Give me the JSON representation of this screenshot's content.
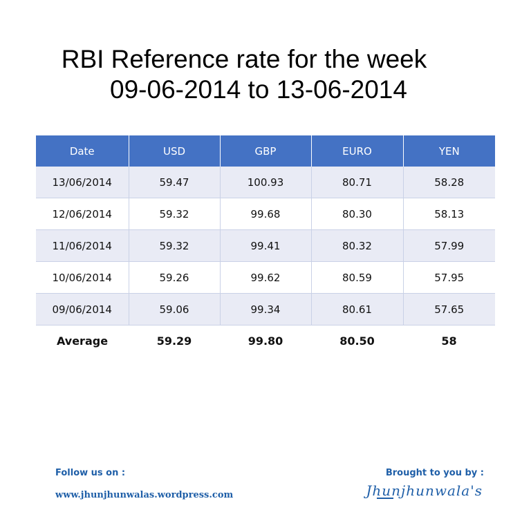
{
  "title": {
    "line1": "RBI Reference rate for the week",
    "line2": "09-06-2014 to 13-06-2014"
  },
  "table": {
    "headers": [
      "Date",
      "USD",
      "GBP",
      "EURO",
      "YEN"
    ],
    "rows": [
      [
        "13/06/2014",
        "59.47",
        "100.93",
        "80.71",
        "58.28"
      ],
      [
        "12/06/2014",
        "59.32",
        "99.68",
        "80.30",
        "58.13"
      ],
      [
        "11/06/2014",
        "59.32",
        "99.41",
        "80.32",
        "57.99"
      ],
      [
        "10/06/2014",
        "59.26",
        "99.62",
        "80.59",
        "57.95"
      ],
      [
        "09/06/2014",
        "59.06",
        "99.34",
        "80.61",
        "57.65"
      ]
    ],
    "average": [
      "Average",
      "59.29",
      "99.80",
      "80.50",
      "58"
    ]
  },
  "footer": {
    "follow_label": "Follow us on :",
    "website": "www.jhunjhunwalas.wordpress.com",
    "brought_label": "Brought to you by :",
    "brand": "Jhunjhunwala's"
  },
  "colors": {
    "header_bg": "#4472c4",
    "shaded_row": "#e9ebf5",
    "footer_text": "#1f5fa8"
  }
}
